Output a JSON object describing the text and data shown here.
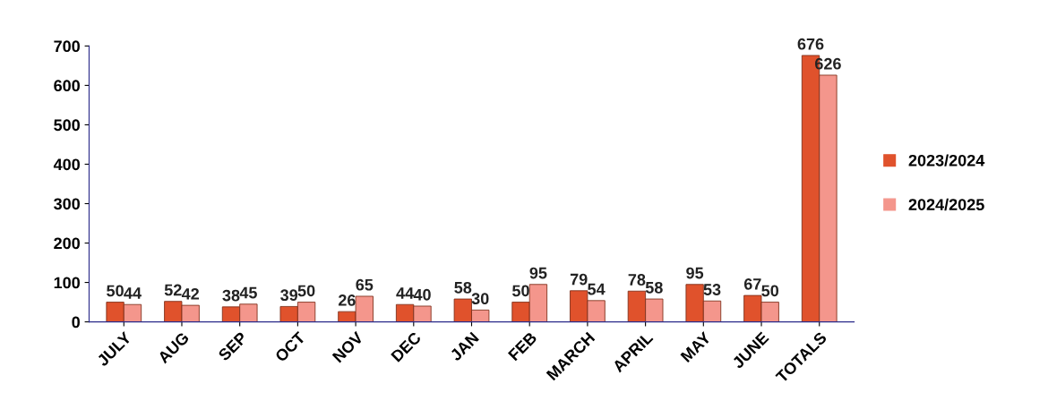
{
  "chart_data": {
    "type": "bar",
    "categories": [
      "JULY",
      "AUG",
      "SEP",
      "OCT",
      "NOV",
      "DEC",
      "JAN",
      "FEB",
      "MARCH",
      "APRIL",
      "MAY",
      "JUNE",
      "TOTALS"
    ],
    "series": [
      {
        "name": "2023/2024",
        "color": "#e0522c",
        "values": [
          50,
          52,
          38,
          39,
          26,
          44,
          58,
          50,
          79,
          78,
          95,
          67,
          676
        ]
      },
      {
        "name": "2024/2025",
        "color": "#f4968c",
        "values": [
          44,
          42,
          45,
          50,
          65,
          40,
          30,
          95,
          54,
          58,
          53,
          50,
          626
        ]
      }
    ],
    "ylim": [
      0,
      700
    ],
    "yticks": [
      0,
      100,
      200,
      300,
      400,
      500,
      600,
      700
    ],
    "data_labels": true,
    "legend": "right",
    "grid": false
  }
}
